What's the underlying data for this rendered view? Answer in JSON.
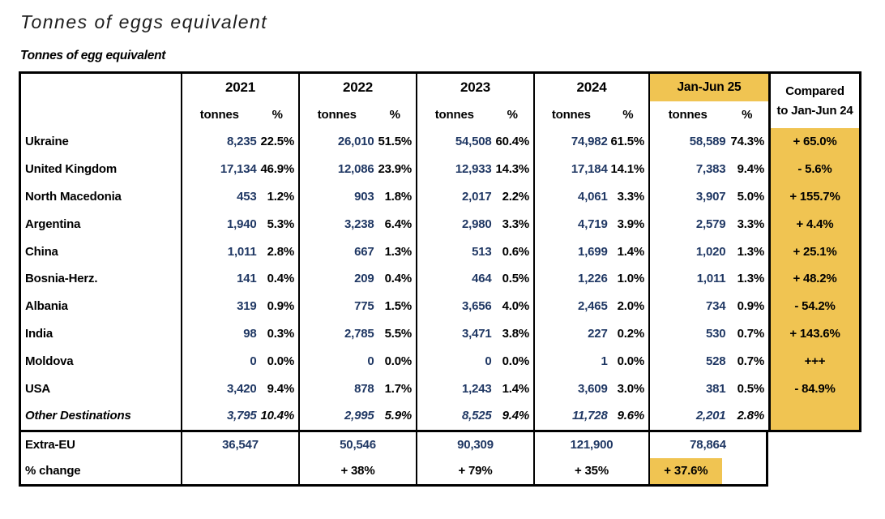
{
  "page": {
    "title": "Tonnes of eggs equivalent",
    "subtitle": "Tonnes of egg equivalent"
  },
  "colors": {
    "highlight": "#F0C452",
    "value_navy": "#203864"
  },
  "table": {
    "columns": [
      "2021",
      "2022",
      "2023",
      "2024",
      "Jan-Jun 25"
    ],
    "compared_header_line1": "Compared",
    "compared_header_line2": "to Jan-Jun 24",
    "sub_tonnes": "tonnes",
    "sub_pct": "%",
    "rows": [
      {
        "name": "Ukraine",
        "v": [
          "8,235",
          "22.5%",
          "26,010",
          "51.5%",
          "54,508",
          "60.4%",
          "74,982",
          "61.5%",
          "58,589",
          "74.3%",
          "+ 65.0%"
        ]
      },
      {
        "name": "United Kingdom",
        "v": [
          "17,134",
          "46.9%",
          "12,086",
          "23.9%",
          "12,933",
          "14.3%",
          "17,184",
          "14.1%",
          "7,383",
          "9.4%",
          "- 5.6%"
        ]
      },
      {
        "name": "North Macedonia",
        "v": [
          "453",
          "1.2%",
          "903",
          "1.8%",
          "2,017",
          "2.2%",
          "4,061",
          "3.3%",
          "3,907",
          "5.0%",
          "+ 155.7%"
        ]
      },
      {
        "name": "Argentina",
        "v": [
          "1,940",
          "5.3%",
          "3,238",
          "6.4%",
          "2,980",
          "3.3%",
          "4,719",
          "3.9%",
          "2,579",
          "3.3%",
          "+ 4.4%"
        ]
      },
      {
        "name": "China",
        "v": [
          "1,011",
          "2.8%",
          "667",
          "1.3%",
          "513",
          "0.6%",
          "1,699",
          "1.4%",
          "1,020",
          "1.3%",
          "+ 25.1%"
        ]
      },
      {
        "name": "Bosnia-Herz.",
        "v": [
          "141",
          "0.4%",
          "209",
          "0.4%",
          "464",
          "0.5%",
          "1,226",
          "1.0%",
          "1,011",
          "1.3%",
          "+ 48.2%"
        ]
      },
      {
        "name": "Albania",
        "v": [
          "319",
          "0.9%",
          "775",
          "1.5%",
          "3,656",
          "4.0%",
          "2,465",
          "2.0%",
          "734",
          "0.9%",
          "- 54.2%"
        ]
      },
      {
        "name": "India",
        "v": [
          "98",
          "0.3%",
          "2,785",
          "5.5%",
          "3,471",
          "3.8%",
          "227",
          "0.2%",
          "530",
          "0.7%",
          "+ 143.6%"
        ]
      },
      {
        "name": "Moldova",
        "v": [
          "0",
          "0.0%",
          "0",
          "0.0%",
          "0",
          "0.0%",
          "1",
          "0.0%",
          "528",
          "0.7%",
          "+++"
        ]
      },
      {
        "name": "USA",
        "v": [
          "3,420",
          "9.4%",
          "878",
          "1.7%",
          "1,243",
          "1.4%",
          "3,609",
          "3.0%",
          "381",
          "0.5%",
          "- 84.9%"
        ]
      },
      {
        "name": "Other Destinations",
        "v": [
          "3,795",
          "10.4%",
          "2,995",
          "5.9%",
          "8,525",
          "9.4%",
          "11,728",
          "9.6%",
          "2,201",
          "2.8%",
          ""
        ]
      }
    ],
    "footer": {
      "extra_eu_label": "Extra-EU",
      "extra_eu": [
        "36,547",
        "50,546",
        "90,309",
        "121,900",
        "78,864"
      ],
      "pct_change_label": "% change",
      "pct_change": [
        "+ 38%",
        "+ 79%",
        "+ 35%",
        "+ 37.6%"
      ]
    }
  }
}
